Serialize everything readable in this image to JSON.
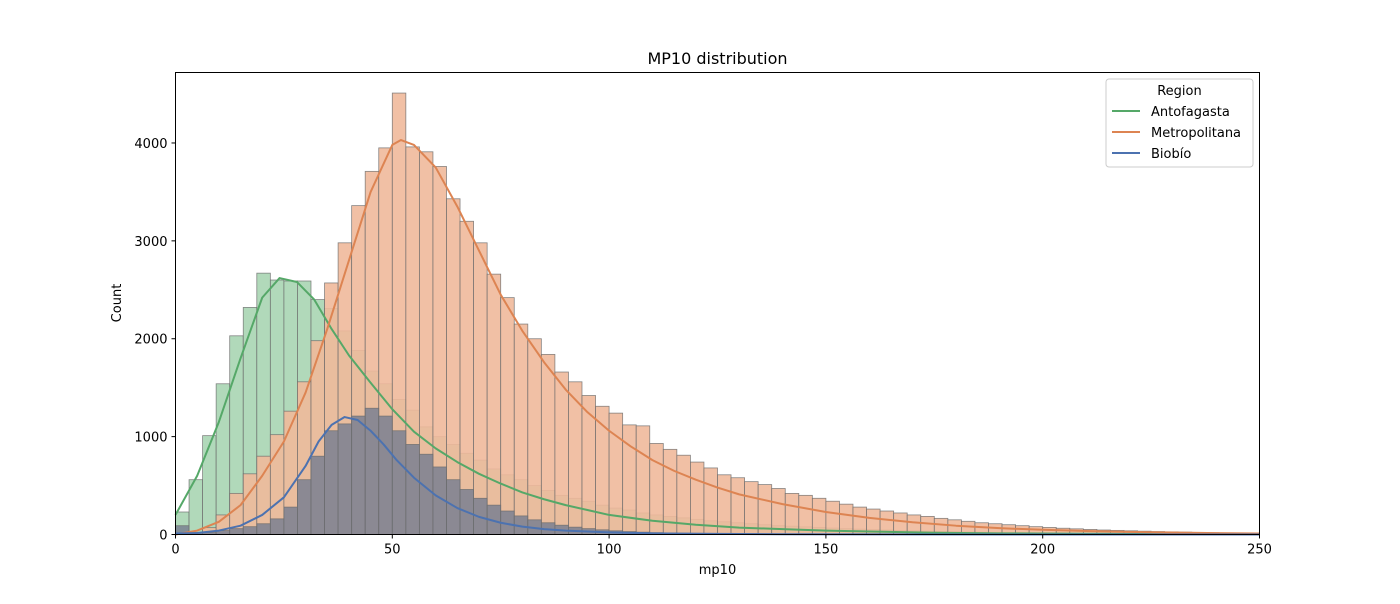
{
  "chart_data": {
    "type": "histogram",
    "title": "MP10 distribution",
    "xlabel": "mp10",
    "ylabel": "Count",
    "xlim": [
      0,
      250
    ],
    "ylim": [
      0,
      4720
    ],
    "xticks": [
      0,
      50,
      100,
      150,
      200,
      250
    ],
    "yticks": [
      0,
      1000,
      2000,
      3000,
      4000
    ],
    "grid": false,
    "bin_width": 3.125,
    "legend": {
      "title": "Region",
      "position": "top-right"
    },
    "series": [
      {
        "name": "Antofagasta",
        "color": "#55a868",
        "fill": "#a8d5b2",
        "bin_start": 0,
        "values": [
          230,
          560,
          1010,
          1540,
          2030,
          2320,
          2670,
          2600,
          2590,
          2590,
          2400,
          2310,
          2080,
          1880,
          1670,
          1540,
          1380,
          1270,
          1100,
          1000,
          920,
          830,
          760,
          670,
          610,
          560,
          500,
          450,
          400,
          370,
          340,
          300,
          270,
          250,
          220,
          200,
          185,
          170,
          155,
          140,
          130,
          120,
          110,
          100,
          90,
          85,
          78,
          72,
          66,
          60,
          55,
          50,
          46,
          42,
          38,
          34,
          31,
          28,
          25,
          23,
          20,
          18,
          16,
          14,
          12,
          11,
          10,
          9,
          8,
          7,
          6,
          5,
          4,
          4,
          3,
          3,
          2,
          2,
          1,
          1
        ],
        "kde": [
          [
            0,
            200
          ],
          [
            5,
            600
          ],
          [
            10,
            1150
          ],
          [
            15,
            1800
          ],
          [
            20,
            2420
          ],
          [
            24,
            2620
          ],
          [
            28,
            2580
          ],
          [
            32,
            2400
          ],
          [
            36,
            2100
          ],
          [
            40,
            1830
          ],
          [
            45,
            1550
          ],
          [
            50,
            1280
          ],
          [
            55,
            1050
          ],
          [
            60,
            880
          ],
          [
            65,
            740
          ],
          [
            70,
            620
          ],
          [
            75,
            520
          ],
          [
            80,
            430
          ],
          [
            85,
            360
          ],
          [
            90,
            300
          ],
          [
            95,
            250
          ],
          [
            100,
            200
          ],
          [
            110,
            140
          ],
          [
            120,
            100
          ],
          [
            130,
            70
          ],
          [
            140,
            55
          ],
          [
            150,
            40
          ],
          [
            160,
            30
          ],
          [
            175,
            18
          ],
          [
            190,
            12
          ],
          [
            210,
            7
          ],
          [
            230,
            4
          ],
          [
            250,
            2
          ]
        ]
      },
      {
        "name": "Metropolitana",
        "color": "#dd8452",
        "fill": "#f0b99b",
        "bin_start": 3.125,
        "values": [
          20,
          70,
          200,
          420,
          620,
          800,
          1020,
          1260,
          1560,
          1980,
          2570,
          2980,
          3360,
          3710,
          3950,
          4510,
          3960,
          3910,
          3760,
          3430,
          3200,
          2980,
          2660,
          2420,
          2150,
          2000,
          1840,
          1660,
          1560,
          1420,
          1310,
          1240,
          1120,
          1110,
          930,
          870,
          810,
          740,
          680,
          610,
          580,
          540,
          510,
          470,
          420,
          400,
          370,
          340,
          310,
          280,
          260,
          240,
          220,
          200,
          185,
          165,
          150,
          135,
          120,
          110,
          100,
          90,
          80,
          72,
          64,
          58,
          52,
          46,
          42,
          38,
          34,
          30,
          27,
          24,
          21,
          18,
          16,
          14,
          12,
          10
        ]
      },
      {
        "name": "Biobío",
        "color": "#4c72b0",
        "fill": "#7a8090",
        "bin_start": 0,
        "values": [
          90,
          20,
          20,
          40,
          60,
          80,
          110,
          160,
          280,
          560,
          800,
          1060,
          1130,
          1210,
          1290,
          1210,
          1060,
          920,
          820,
          690,
          560,
          460,
          370,
          300,
          240,
          190,
          150,
          120,
          95,
          75,
          60,
          48,
          38,
          30,
          24,
          19,
          15,
          12,
          10,
          8,
          6,
          5,
          4,
          3,
          3,
          2,
          2,
          1,
          1,
          1
        ],
        "kde": [
          [
            0,
            10
          ],
          [
            5,
            15
          ],
          [
            10,
            40
          ],
          [
            15,
            90
          ],
          [
            20,
            200
          ],
          [
            25,
            380
          ],
          [
            30,
            700
          ],
          [
            33,
            950
          ],
          [
            36,
            1120
          ],
          [
            39,
            1200
          ],
          [
            42,
            1170
          ],
          [
            45,
            1060
          ],
          [
            48,
            920
          ],
          [
            51,
            760
          ],
          [
            55,
            580
          ],
          [
            60,
            400
          ],
          [
            65,
            270
          ],
          [
            70,
            180
          ],
          [
            75,
            120
          ],
          [
            80,
            80
          ],
          [
            85,
            55
          ],
          [
            90,
            40
          ],
          [
            100,
            22
          ],
          [
            110,
            12
          ],
          [
            125,
            6
          ],
          [
            140,
            3
          ],
          [
            160,
            1
          ],
          [
            200,
            0
          ],
          [
            250,
            0
          ]
        ]
      }
    ],
    "metropolitana_kde": [
      [
        0,
        0
      ],
      [
        5,
        40
      ],
      [
        10,
        130
      ],
      [
        15,
        300
      ],
      [
        20,
        600
      ],
      [
        25,
        950
      ],
      [
        30,
        1450
      ],
      [
        35,
        2100
      ],
      [
        40,
        2800
      ],
      [
        45,
        3500
      ],
      [
        50,
        3980
      ],
      [
        52,
        4030
      ],
      [
        55,
        3980
      ],
      [
        60,
        3750
      ],
      [
        65,
        3350
      ],
      [
        70,
        2900
      ],
      [
        75,
        2450
      ],
      [
        80,
        2080
      ],
      [
        85,
        1760
      ],
      [
        90,
        1480
      ],
      [
        95,
        1250
      ],
      [
        100,
        1060
      ],
      [
        105,
        900
      ],
      [
        110,
        760
      ],
      [
        115,
        650
      ],
      [
        120,
        560
      ],
      [
        125,
        480
      ],
      [
        130,
        410
      ],
      [
        140,
        310
      ],
      [
        150,
        230
      ],
      [
        160,
        170
      ],
      [
        170,
        125
      ],
      [
        180,
        90
      ],
      [
        190,
        65
      ],
      [
        200,
        48
      ],
      [
        210,
        36
      ],
      [
        220,
        27
      ],
      [
        230,
        20
      ],
      [
        240,
        14
      ],
      [
        250,
        10
      ]
    ]
  }
}
